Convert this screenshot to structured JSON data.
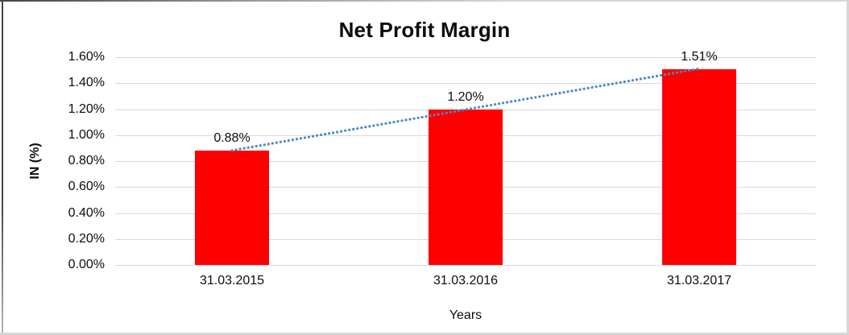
{
  "chart_data": {
    "type": "bar",
    "title": "Net Profit Margin",
    "xlabel": "Years",
    "ylabel": "IN (%)",
    "categories": [
      "31.03.2015",
      "31.03.2016",
      "31.03.2017"
    ],
    "values": [
      0.88,
      1.2,
      1.51
    ],
    "data_labels": [
      "0.88%",
      "1.20%",
      "1.51%"
    ],
    "ylim": [
      0,
      1.6
    ],
    "ytick_step": 0.2,
    "ytick_labels": [
      "0.00%",
      "0.20%",
      "0.40%",
      "0.60%",
      "0.80%",
      "1.00%",
      "1.20%",
      "1.40%",
      "1.60%"
    ],
    "grid": true,
    "legend": "none",
    "bar_color": "#FF0000",
    "trendline": {
      "type": "linear",
      "style": "dotted",
      "color": "#4D87C7"
    }
  }
}
